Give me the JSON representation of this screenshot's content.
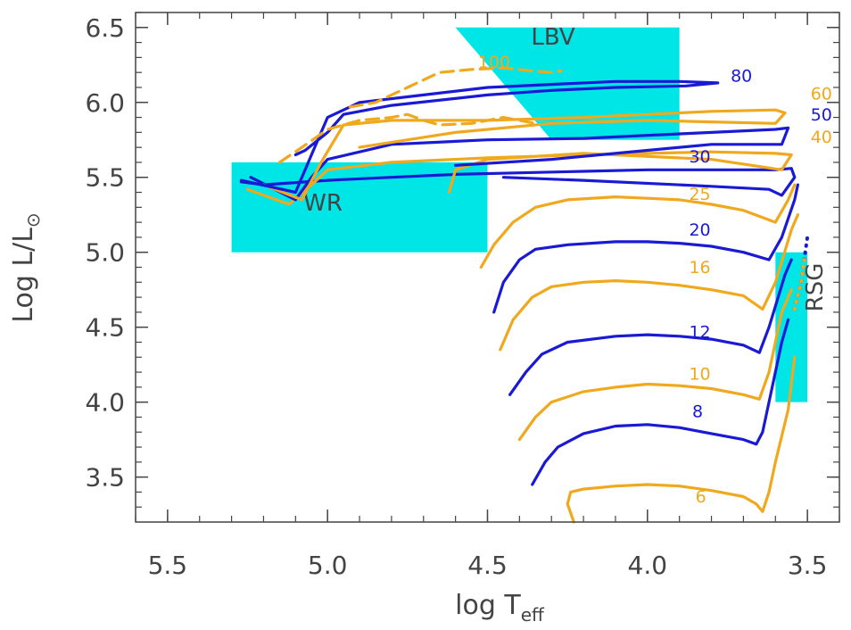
{
  "chart_data": {
    "type": "line",
    "title": "",
    "xlabel": "log T",
    "xlabel_sub": "eff",
    "ylabel": "Log L/L",
    "ylabel_sub": "⊙",
    "xlim": [
      5.6,
      3.4
    ],
    "ylim": [
      3.2,
      6.6
    ],
    "x_reversed": true,
    "xticks": [
      "5.5",
      "5.0",
      "4.5",
      "4.0",
      "3.5"
    ],
    "yticks": [
      "3.5",
      "4.0",
      "4.5",
      "5.0",
      "5.5",
      "6.0",
      "6.5"
    ],
    "grid": false,
    "colors": {
      "blue": "#1a1ad4",
      "orange": "#f0a91e",
      "region": "#00e6e6"
    },
    "regions": [
      {
        "name": "LBV",
        "polygon": [
          [
            4.6,
            6.5
          ],
          [
            3.9,
            6.5
          ],
          [
            3.9,
            5.75
          ],
          [
            4.3,
            5.75
          ]
        ]
      },
      {
        "name": "WR",
        "polygon": [
          [
            5.3,
            5.6
          ],
          [
            4.5,
            5.6
          ],
          [
            4.5,
            5.0
          ],
          [
            5.3,
            5.0
          ]
        ]
      },
      {
        "name": "RSG",
        "polygon": [
          [
            3.6,
            5.0
          ],
          [
            3.5,
            5.0
          ],
          [
            3.5,
            4.0
          ],
          [
            3.6,
            4.0
          ]
        ]
      }
    ],
    "series": [
      {
        "name": "6",
        "color": "orange",
        "label_at": [
          3.85,
          3.33
        ],
        "points": [
          [
            4.23,
            3.2
          ],
          [
            4.25,
            3.32
          ],
          [
            4.24,
            3.4
          ],
          [
            4.2,
            3.42
          ],
          [
            4.1,
            3.44
          ],
          [
            4.0,
            3.45
          ],
          [
            3.9,
            3.44
          ],
          [
            3.8,
            3.41
          ],
          [
            3.7,
            3.37
          ],
          [
            3.66,
            3.32
          ],
          [
            3.64,
            3.27
          ],
          [
            3.62,
            3.4
          ],
          [
            3.6,
            3.6
          ],
          [
            3.56,
            3.95
          ],
          [
            3.54,
            4.3
          ]
        ]
      },
      {
        "name": "8",
        "color": "blue",
        "label_at": [
          3.86,
          3.9
        ],
        "points": [
          [
            4.36,
            3.45
          ],
          [
            4.32,
            3.6
          ],
          [
            4.28,
            3.7
          ],
          [
            4.2,
            3.79
          ],
          [
            4.1,
            3.84
          ],
          [
            4.0,
            3.85
          ],
          [
            3.9,
            3.83
          ],
          [
            3.8,
            3.79
          ],
          [
            3.7,
            3.75
          ],
          [
            3.66,
            3.72
          ],
          [
            3.64,
            3.8
          ],
          [
            3.62,
            4.0
          ],
          [
            3.58,
            4.4
          ],
          [
            3.56,
            4.55
          ]
        ]
      },
      {
        "name": "10",
        "color": "orange",
        "label_at": [
          3.87,
          4.15
        ],
        "points": [
          [
            4.4,
            3.75
          ],
          [
            4.35,
            3.9
          ],
          [
            4.3,
            4.0
          ],
          [
            4.2,
            4.07
          ],
          [
            4.1,
            4.1
          ],
          [
            4.0,
            4.12
          ],
          [
            3.9,
            4.11
          ],
          [
            3.8,
            4.09
          ],
          [
            3.7,
            4.05
          ],
          [
            3.65,
            4.02
          ],
          [
            3.62,
            4.2
          ],
          [
            3.58,
            4.6
          ],
          [
            3.55,
            4.75
          ]
        ]
      },
      {
        "name": "12",
        "color": "blue",
        "label_at": [
          3.87,
          4.43
        ],
        "points": [
          [
            4.43,
            4.05
          ],
          [
            4.38,
            4.2
          ],
          [
            4.33,
            4.32
          ],
          [
            4.25,
            4.4
          ],
          [
            4.1,
            4.44
          ],
          [
            4.0,
            4.45
          ],
          [
            3.9,
            4.44
          ],
          [
            3.8,
            4.42
          ],
          [
            3.7,
            4.38
          ],
          [
            3.65,
            4.33
          ],
          [
            3.62,
            4.5
          ],
          [
            3.57,
            4.85
          ],
          [
            3.55,
            4.95
          ]
        ]
      },
      {
        "name": "16",
        "color": "orange",
        "label_at": [
          3.87,
          4.86
        ],
        "points": [
          [
            4.46,
            4.35
          ],
          [
            4.42,
            4.55
          ],
          [
            4.36,
            4.7
          ],
          [
            4.3,
            4.77
          ],
          [
            4.2,
            4.8
          ],
          [
            4.1,
            4.81
          ],
          [
            4.0,
            4.8
          ],
          [
            3.9,
            4.78
          ],
          [
            3.8,
            4.75
          ],
          [
            3.7,
            4.71
          ],
          [
            3.64,
            4.62
          ],
          [
            3.6,
            4.8
          ],
          [
            3.55,
            5.15
          ],
          [
            3.53,
            5.25
          ]
        ]
      },
      {
        "name": "20",
        "color": "blue",
        "label_at": [
          3.87,
          5.11
        ],
        "points": [
          [
            4.48,
            4.6
          ],
          [
            4.45,
            4.8
          ],
          [
            4.4,
            4.95
          ],
          [
            4.35,
            5.02
          ],
          [
            4.25,
            5.05
          ],
          [
            4.1,
            5.07
          ],
          [
            4.0,
            5.07
          ],
          [
            3.9,
            5.06
          ],
          [
            3.8,
            5.04
          ],
          [
            3.7,
            5.0
          ],
          [
            3.62,
            4.95
          ],
          [
            3.58,
            5.1
          ],
          [
            3.54,
            5.35
          ],
          [
            3.53,
            5.45
          ]
        ]
      },
      {
        "name": "25",
        "color": "orange",
        "label_at": [
          3.87,
          5.35
        ],
        "points": [
          [
            4.52,
            4.9
          ],
          [
            4.48,
            5.05
          ],
          [
            4.42,
            5.2
          ],
          [
            4.35,
            5.3
          ],
          [
            4.25,
            5.35
          ],
          [
            4.1,
            5.37
          ],
          [
            4.0,
            5.36
          ],
          [
            3.9,
            5.35
          ],
          [
            3.8,
            5.32
          ],
          [
            3.7,
            5.28
          ],
          [
            3.6,
            5.2
          ],
          [
            3.56,
            5.35
          ],
          [
            3.54,
            5.45
          ]
        ]
      },
      {
        "name": "30",
        "color": "blue",
        "label_at": [
          3.87,
          5.6
        ],
        "points": [
          [
            5.27,
            5.47
          ],
          [
            5.2,
            5.45
          ],
          [
            5.0,
            5.48
          ],
          [
            4.8,
            5.5
          ],
          [
            4.6,
            5.52
          ],
          [
            4.4,
            5.53
          ],
          [
            4.2,
            5.54
          ],
          [
            4.0,
            5.55
          ],
          [
            3.8,
            5.55
          ],
          [
            3.6,
            5.55
          ],
          [
            3.55,
            5.56
          ],
          [
            3.54,
            5.5
          ],
          [
            3.58,
            5.38
          ],
          [
            3.62,
            5.42
          ],
          [
            3.8,
            5.44
          ],
          [
            4.2,
            5.48
          ],
          [
            4.45,
            5.5
          ]
        ]
      },
      {
        "name": "40",
        "color": "orange",
        "label_at": [
          3.49,
          5.73
        ],
        "points": [
          [
            5.25,
            5.42
          ],
          [
            5.12,
            5.32
          ],
          [
            5.05,
            5.45
          ],
          [
            5.0,
            5.55
          ],
          [
            4.8,
            5.6
          ],
          [
            4.5,
            5.63
          ],
          [
            4.2,
            5.65
          ],
          [
            4.0,
            5.66
          ],
          [
            3.8,
            5.67
          ],
          [
            3.6,
            5.66
          ],
          [
            3.55,
            5.65
          ],
          [
            3.58,
            5.55
          ],
          [
            3.8,
            5.62
          ],
          [
            4.2,
            5.66
          ],
          [
            4.5,
            5.62
          ],
          [
            4.6,
            5.55
          ],
          [
            4.62,
            5.4
          ]
        ]
      },
      {
        "name": "50",
        "color": "blue",
        "label_at": [
          3.49,
          5.88
        ],
        "points": [
          [
            5.24,
            5.5
          ],
          [
            5.1,
            5.35
          ],
          [
            5.05,
            5.5
          ],
          [
            5.0,
            5.62
          ],
          [
            4.8,
            5.72
          ],
          [
            4.5,
            5.75
          ],
          [
            4.2,
            5.76
          ],
          [
            4.0,
            5.78
          ],
          [
            3.8,
            5.8
          ],
          [
            3.6,
            5.82
          ],
          [
            3.56,
            5.83
          ],
          [
            3.58,
            5.72
          ],
          [
            3.8,
            5.72
          ],
          [
            4.0,
            5.68
          ],
          [
            4.3,
            5.62
          ],
          [
            4.6,
            5.58
          ]
        ]
      },
      {
        "name": "60",
        "color": "orange",
        "label_at": [
          3.49,
          6.02
        ],
        "points": [
          [
            5.2,
            5.45
          ],
          [
            5.08,
            5.35
          ],
          [
            5.02,
            5.6
          ],
          [
            4.95,
            5.85
          ],
          [
            4.8,
            5.88
          ],
          [
            4.5,
            5.88
          ],
          [
            4.2,
            5.9
          ],
          [
            4.0,
            5.92
          ],
          [
            3.8,
            5.94
          ],
          [
            3.6,
            5.95
          ],
          [
            3.57,
            5.93
          ],
          [
            3.6,
            5.86
          ],
          [
            3.8,
            5.87
          ],
          [
            4.0,
            5.88
          ],
          [
            4.3,
            5.86
          ],
          [
            4.6,
            5.8
          ],
          [
            4.75,
            5.75
          ],
          [
            4.9,
            5.7
          ]
        ]
      },
      {
        "name": "80",
        "color": "blue",
        "label_at": [
          3.74,
          6.14
        ],
        "points": [
          [
            5.27,
            5.48
          ],
          [
            5.1,
            5.4
          ],
          [
            5.05,
            5.65
          ],
          [
            5.0,
            5.9
          ],
          [
            4.9,
            6.0
          ],
          [
            4.7,
            6.05
          ],
          [
            4.5,
            6.1
          ],
          [
            4.3,
            6.12
          ],
          [
            4.1,
            6.14
          ],
          [
            3.9,
            6.14
          ],
          [
            3.78,
            6.13
          ],
          [
            3.88,
            6.11
          ],
          [
            4.1,
            6.1
          ],
          [
            4.3,
            6.08
          ],
          [
            4.5,
            6.05
          ],
          [
            4.8,
            5.98
          ],
          [
            4.95,
            5.92
          ],
          [
            5.0,
            5.8
          ],
          [
            5.07,
            5.68
          ],
          [
            5.1,
            5.65
          ]
        ]
      },
      {
        "name": "100",
        "color": "orange",
        "dashed": true,
        "label_at": [
          4.53,
          6.23
        ],
        "points": [
          [
            4.93,
            5.97
          ],
          [
            4.85,
            6.0
          ],
          [
            4.75,
            6.1
          ],
          [
            4.65,
            6.2
          ],
          [
            4.55,
            6.22
          ],
          [
            4.45,
            6.23
          ],
          [
            4.36,
            6.21
          ],
          [
            4.3,
            6.2
          ],
          [
            4.27,
            6.21
          ]
        ]
      },
      {
        "name": "100b",
        "color": "orange",
        "dashed": true,
        "points": [
          [
            5.15,
            5.6
          ],
          [
            5.08,
            5.7
          ],
          [
            5.0,
            5.82
          ],
          [
            4.9,
            5.88
          ],
          [
            4.8,
            5.9
          ],
          [
            4.75,
            5.92
          ],
          [
            4.7,
            5.88
          ],
          [
            4.65,
            5.85
          ],
          [
            4.55,
            5.86
          ],
          [
            4.45,
            5.9
          ],
          [
            4.35,
            5.86
          ]
        ]
      },
      {
        "name": "rsg-blue-dots",
        "color": "blue",
        "dotted": true,
        "points": [
          [
            3.54,
            4.62
          ],
          [
            3.52,
            4.8
          ],
          [
            3.5,
            5.1
          ]
        ]
      },
      {
        "name": "rsg-orange-dots",
        "color": "orange",
        "dotted": true,
        "points": [
          [
            3.54,
            4.62
          ],
          [
            3.52,
            4.8
          ],
          [
            3.51,
            4.95
          ]
        ]
      }
    ]
  }
}
